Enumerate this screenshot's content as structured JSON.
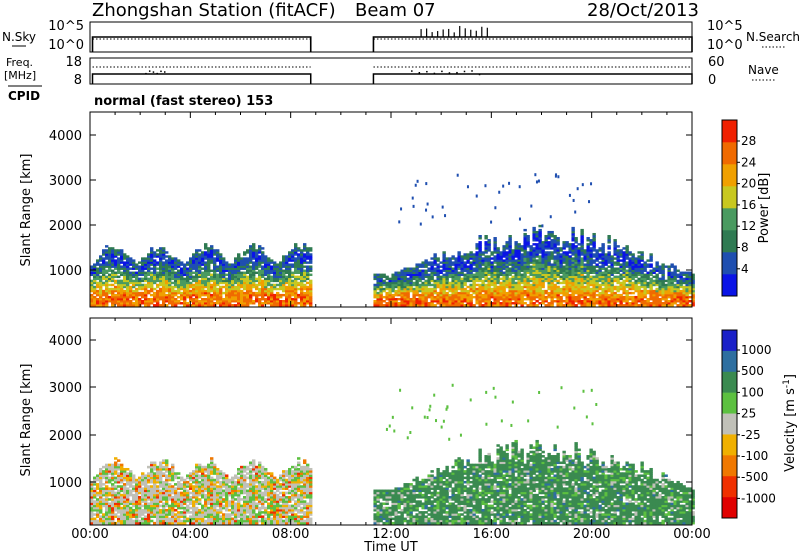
{
  "header": {
    "station": "Zhongshan Station (fitACF)",
    "beam": "Beam 07",
    "date": "28/Oct/2013"
  },
  "sky_panel": {
    "left_label": "N.Sky",
    "left_ticks": [
      "10^5",
      "10^0"
    ],
    "right_ticks": [
      "10^5",
      "10^0"
    ],
    "right_label": "N.Search"
  },
  "freq_panel": {
    "left_label_1": "Freq.",
    "left_label_2": "[MHz]",
    "left_ticks": [
      "18",
      "8"
    ],
    "right_ticks": [
      "60",
      "0"
    ],
    "right_label": "Nave"
  },
  "cpid": {
    "label": "CPID",
    "value": "normal (fast stereo) 153"
  },
  "power_panel": {
    "ylabel": "Slant Range [km]",
    "yticks": [
      "4000",
      "3000",
      "2000",
      "1000"
    ],
    "colorbar_label": "Power [dB]",
    "colorbar_ticks": [
      "28",
      "24",
      "20",
      "16",
      "12",
      "8",
      "4"
    ]
  },
  "velocity_panel": {
    "ylabel": "Slant Range [km]",
    "yticks": [
      "4000",
      "3000",
      "2000",
      "1000"
    ],
    "colorbar_label": "Velocity [m s",
    "colorbar_sup": "-1",
    "colorbar_label_end": "]",
    "colorbar_ticks": [
      "1000",
      "500",
      "100",
      "25",
      "-25",
      "-100",
      "-500",
      "-1000"
    ]
  },
  "x_axis": {
    "ticks": [
      "00:00",
      "04:00",
      "08:00",
      "12:00",
      "16:00",
      "20:00",
      "00:00"
    ],
    "label": "Time UT"
  },
  "colors": {
    "power_scale": [
      "#0a14e6",
      "#1f4fb0",
      "#2f7a52",
      "#4a9a60",
      "#c8c820",
      "#f0a000",
      "#f06a00",
      "#f02000"
    ],
    "velocity_scale": [
      "#1a20c8",
      "#2e6fa0",
      "#3a8a50",
      "#5cc040",
      "#c0c0b8",
      "#f0b000",
      "#f07800",
      "#f03000",
      "#e00000"
    ]
  },
  "chart_data": {
    "type": "heatmap",
    "title": "Zhongshan Station (fitACF)",
    "subtitle": "Beam 07",
    "x_range_hours_ut": [
      0,
      24
    ],
    "y_range_km": [
      180,
      4500
    ],
    "xlabel": "Time UT",
    "ylabel": "Slant Range [km]",
    "panels": [
      {
        "name": "Power [dB]",
        "color_range": [
          0,
          30
        ],
        "regions": [
          {
            "t": [
              0.0,
              8.8
            ],
            "r": [
              200,
              1600
            ],
            "peak_range": [
              400,
              800
            ],
            "value": 24
          },
          {
            "t": [
              11.3,
              24.0
            ],
            "r": [
              200,
              2200
            ],
            "peak_range": [
              350,
              900
            ],
            "value": 22
          }
        ]
      },
      {
        "name": "Velocity [m s-1]",
        "color_range": [
          -1000,
          1000
        ],
        "regions": [
          {
            "t": [
              0.0,
              8.8
            ],
            "r": [
              200,
              1600
            ],
            "value": -50
          },
          {
            "t": [
              11.3,
              24.0
            ],
            "r": [
              200,
              2200
            ],
            "value": 100
          }
        ]
      }
    ],
    "data_gap_hours_ut": [
      8.8,
      11.3
    ]
  }
}
